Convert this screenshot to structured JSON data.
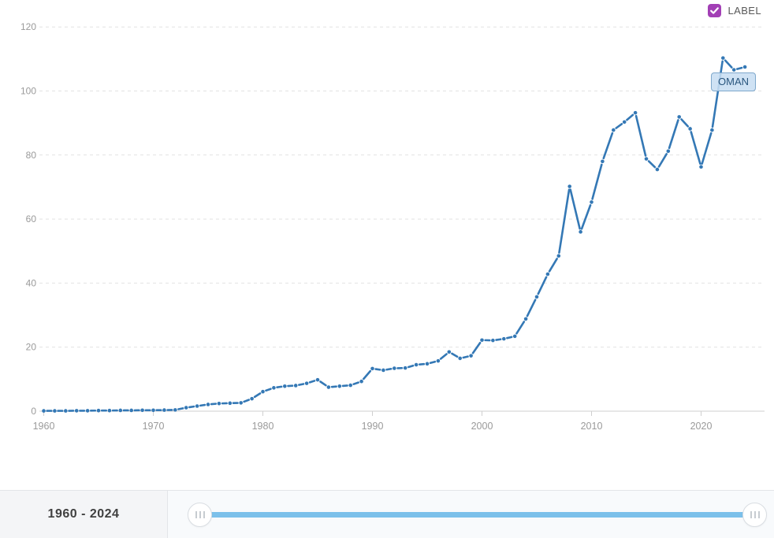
{
  "colors": {
    "line": "#3478b5",
    "marker": "#3478b5",
    "checkbox": "#a23fb5",
    "slider_track": "#7cc0ea",
    "grid": "#e2e2e2",
    "axis_line": "#cfcfcf",
    "tick_label": "#9a9a9a",
    "annotation_bg": "#c8def2",
    "annotation_border": "#7fa8cc",
    "annotation_text": "#29567e"
  },
  "legend": {
    "label": "LABEL",
    "checked": true
  },
  "range_selector": {
    "label": "1960 - 2024",
    "start": "1960",
    "end": "2024"
  },
  "chart_data": {
    "type": "line",
    "series_label": "OMAN",
    "title": "",
    "xlabel": "",
    "ylabel": "",
    "xlim": [
      1960,
      2025.8
    ],
    "ylim": [
      0,
      120
    ],
    "grid": "dashed-horizontal",
    "legend_position": "top-right",
    "yticks": [
      0,
      20,
      40,
      60,
      80,
      100,
      120
    ],
    "xticks": [
      1960,
      1970,
      1980,
      1990,
      2000,
      2010,
      2020
    ],
    "x": [
      1960,
      1961,
      1962,
      1963,
      1964,
      1965,
      1966,
      1967,
      1968,
      1969,
      1970,
      1971,
      1972,
      1973,
      1974,
      1975,
      1976,
      1977,
      1978,
      1979,
      1980,
      1981,
      1982,
      1983,
      1984,
      1985,
      1986,
      1987,
      1988,
      1989,
      1990,
      1991,
      1992,
      1993,
      1994,
      1995,
      1996,
      1997,
      1998,
      1999,
      2000,
      2001,
      2002,
      2003,
      2004,
      2005,
      2006,
      2007,
      2008,
      2009,
      2010,
      2011,
      2012,
      2013,
      2014,
      2015,
      2016,
      2017,
      2018,
      2019,
      2020,
      2021,
      2022,
      2023,
      2024
    ],
    "values": [
      0.1,
      0.1,
      0.1,
      0.15,
      0.15,
      0.2,
      0.2,
      0.25,
      0.25,
      0.3,
      0.3,
      0.35,
      0.4,
      1.1,
      1.6,
      2.1,
      2.4,
      2.5,
      2.6,
      3.9,
      6.1,
      7.3,
      7.8,
      8.0,
      8.7,
      9.8,
      7.5,
      7.8,
      8.1,
      9.3,
      13.3,
      12.8,
      13.4,
      13.5,
      14.5,
      14.8,
      15.7,
      18.5,
      16.5,
      17.3,
      22.2,
      22.1,
      22.6,
      23.4,
      28.8,
      35.7,
      42.8,
      48.5,
      70.2,
      56.0,
      65.3,
      78.0,
      87.8,
      90.3,
      93.2,
      78.8,
      75.5,
      81.2,
      91.9,
      88.2,
      76.3,
      87.8,
      110.3,
      106.6,
      107.5
    ]
  }
}
